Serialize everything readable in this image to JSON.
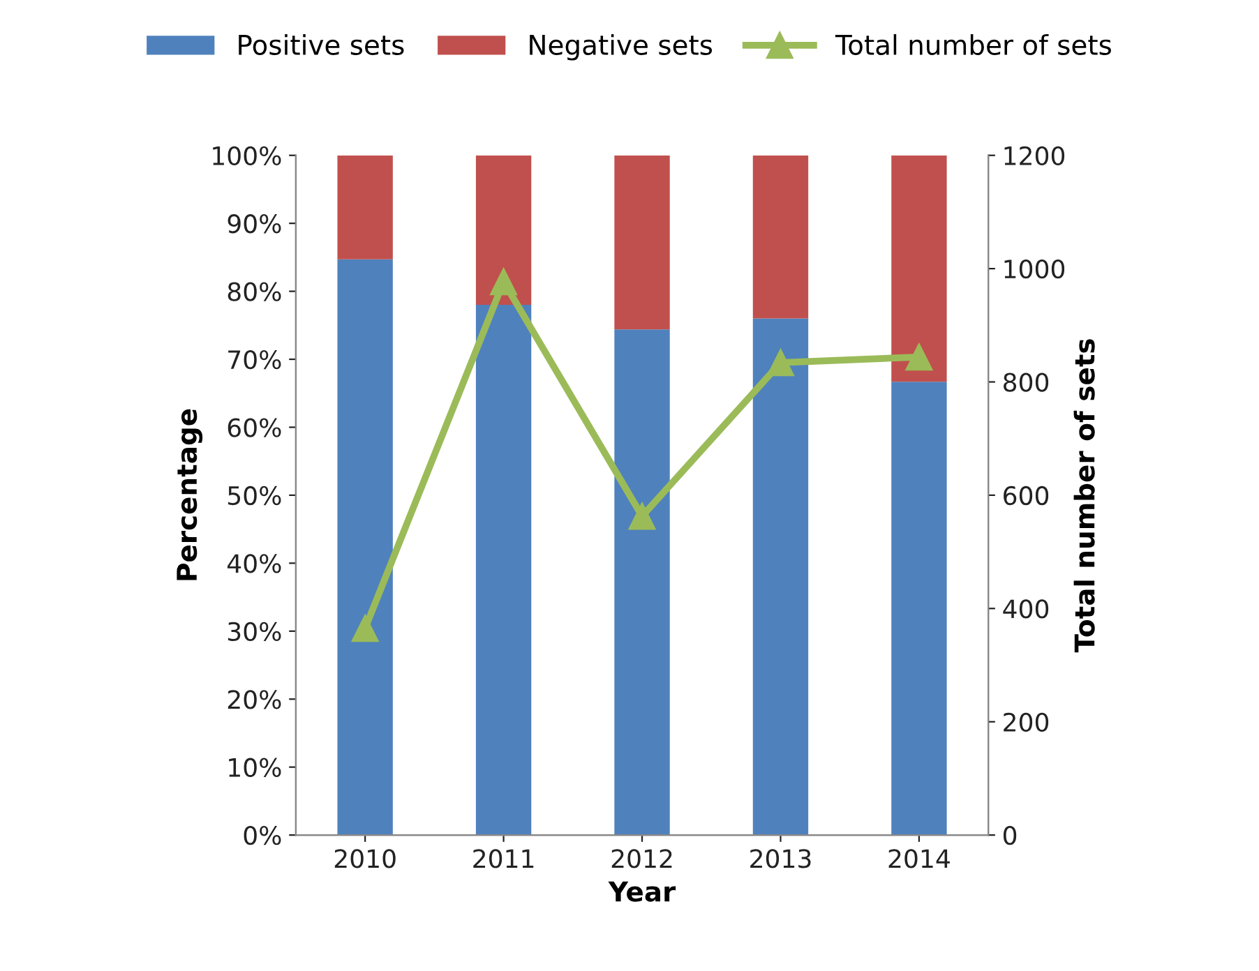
{
  "chart_data": {
    "type": "bar",
    "stacked": true,
    "xlabel": "Year",
    "ylabel": "Percentage",
    "y2label": "Total number of sets",
    "categories": [
      "2010",
      "2011",
      "2012",
      "2013",
      "2014"
    ],
    "series": [
      {
        "name": "Positive sets",
        "color": "#4f81bd",
        "values": [
          84.7,
          78.0,
          74.4,
          76.0,
          66.7
        ]
      },
      {
        "name": "Negative sets",
        "color": "#c0504d",
        "values": [
          15.3,
          22.0,
          25.6,
          24.0,
          33.3
        ]
      },
      {
        "name": "Total number of sets",
        "type": "line",
        "axis": "y2",
        "marker": "triangle",
        "color": "#9bbb59",
        "values": [
          365,
          977,
          563,
          834,
          844
        ]
      }
    ],
    "ylim": [
      0,
      100
    ],
    "yticks": [
      {
        "value": 0,
        "label": "0%"
      },
      {
        "value": 10,
        "label": "10%"
      },
      {
        "value": 20,
        "label": "20%"
      },
      {
        "value": 30,
        "label": "30%"
      },
      {
        "value": 40,
        "label": "40%"
      },
      {
        "value": 50,
        "label": "50%"
      },
      {
        "value": 60,
        "label": "60%"
      },
      {
        "value": 70,
        "label": "70%"
      },
      {
        "value": 80,
        "label": "80%"
      },
      {
        "value": 90,
        "label": "90%"
      },
      {
        "value": 100,
        "label": "100%"
      }
    ],
    "y2lim": [
      0,
      1200
    ],
    "y2ticks": [
      0,
      200,
      400,
      600,
      800,
      1000,
      1200
    ],
    "grid": false,
    "legend": "top"
  }
}
